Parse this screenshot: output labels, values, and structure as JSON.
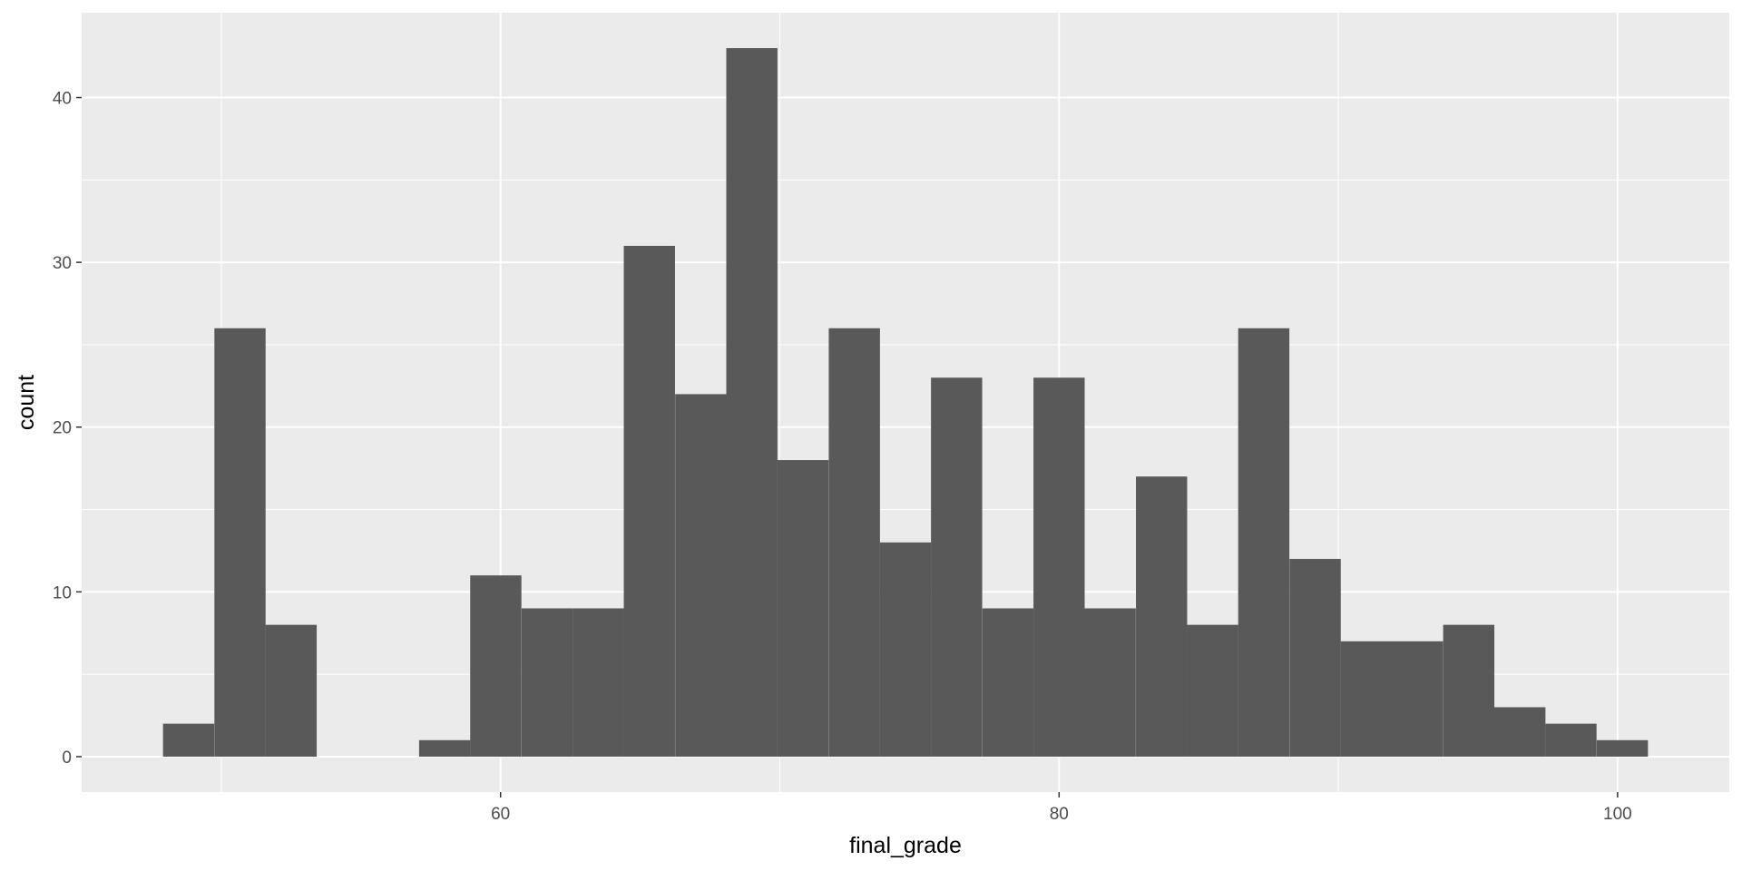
{
  "chart_data": {
    "type": "bar",
    "subtype": "histogram",
    "title": "",
    "xlabel": "final_grade",
    "ylabel": "count",
    "binwidth": 1.8333,
    "bins": [
      {
        "center": 48.83,
        "count": 2
      },
      {
        "center": 50.67,
        "count": 26
      },
      {
        "center": 52.5,
        "count": 8
      },
      {
        "center": 54.33,
        "count": 0
      },
      {
        "center": 56.17,
        "count": 0
      },
      {
        "center": 58.0,
        "count": 1
      },
      {
        "center": 59.83,
        "count": 11
      },
      {
        "center": 61.67,
        "count": 9
      },
      {
        "center": 63.5,
        "count": 9
      },
      {
        "center": 65.33,
        "count": 31
      },
      {
        "center": 67.17,
        "count": 22
      },
      {
        "center": 69.0,
        "count": 43
      },
      {
        "center": 70.83,
        "count": 18
      },
      {
        "center": 72.67,
        "count": 26
      },
      {
        "center": 74.5,
        "count": 13
      },
      {
        "center": 76.33,
        "count": 23
      },
      {
        "center": 78.17,
        "count": 9
      },
      {
        "center": 80.0,
        "count": 23
      },
      {
        "center": 81.83,
        "count": 9
      },
      {
        "center": 83.67,
        "count": 17
      },
      {
        "center": 85.5,
        "count": 8
      },
      {
        "center": 87.33,
        "count": 26
      },
      {
        "center": 89.17,
        "count": 12
      },
      {
        "center": 91.0,
        "count": 7
      },
      {
        "center": 92.83,
        "count": 7
      },
      {
        "center": 94.67,
        "count": 8
      },
      {
        "center": 96.5,
        "count": 3
      },
      {
        "center": 98.33,
        "count": 2
      },
      {
        "center": 100.17,
        "count": 1
      }
    ],
    "xlim": [
      45.0,
      104.0
    ],
    "ylim": [
      -2.15,
      45.15
    ],
    "x_ticks": [
      60,
      80,
      100
    ],
    "x_minor_ticks": [
      50,
      70,
      90
    ],
    "y_ticks": [
      0,
      10,
      20,
      30,
      40
    ],
    "y_minor_ticks": [
      5,
      15,
      25,
      35
    ],
    "grid": true,
    "legend": "none",
    "colors": {
      "panel_background": "#ebebeb",
      "grid": "#ffffff",
      "bar_fill": "#595959",
      "tick_text": "#4d4d4d",
      "axis_title": "#000000"
    }
  }
}
